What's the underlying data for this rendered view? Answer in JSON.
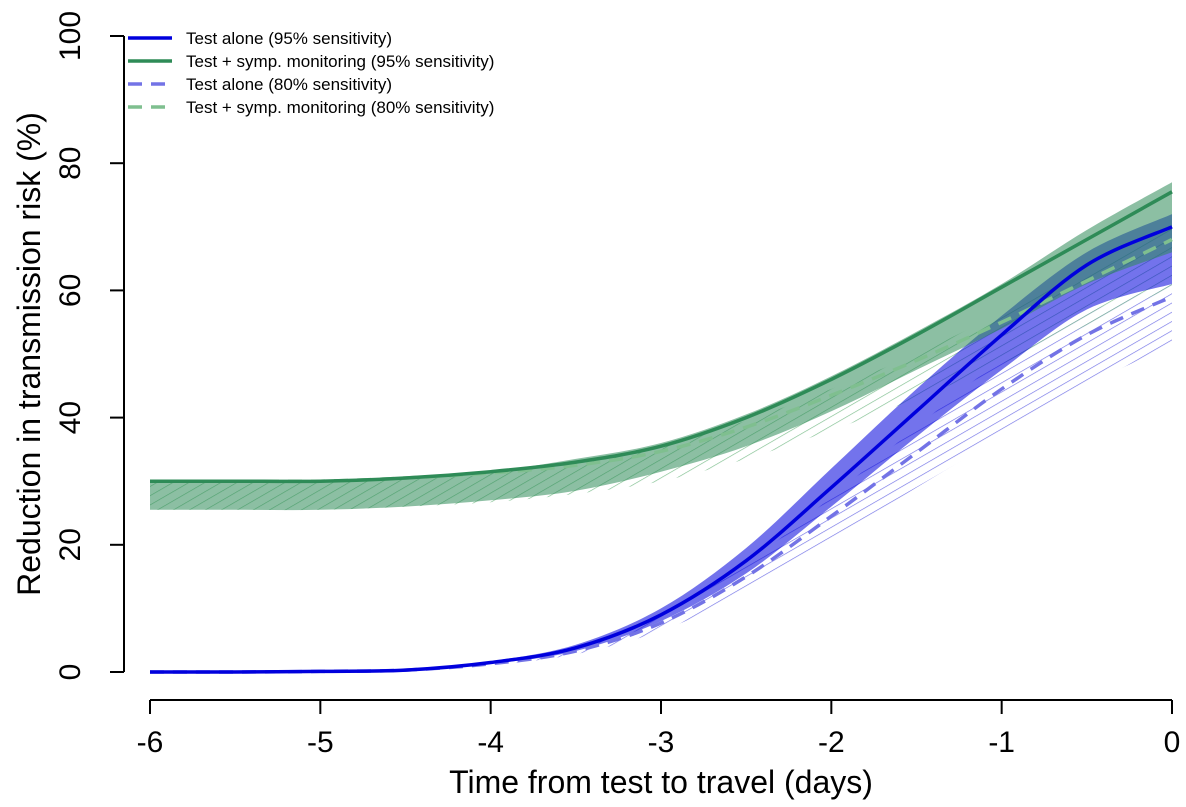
{
  "chart_data": {
    "type": "line",
    "xlabel": "Time from test to travel (days)",
    "ylabel": "Reduction in transmission risk (%)",
    "xlim": [
      -6,
      0
    ],
    "ylim": [
      0,
      100
    ],
    "x_ticks": [
      "-6",
      "-5",
      "-4",
      "-3",
      "-2",
      "-1",
      "0"
    ],
    "y_ticks": [
      "0",
      "20",
      "40",
      "60",
      "80",
      "100"
    ],
    "legend_position": "top-left",
    "x": [
      -6,
      -5.5,
      -5,
      -4.5,
      -4,
      -3.5,
      -3,
      -2.5,
      -2,
      -1.5,
      -1,
      -0.5,
      0
    ],
    "series": [
      {
        "name": "Test alone (95% sensitivity)",
        "color": "#0000dd",
        "style": "solid",
        "values": [
          0,
          0,
          0.1,
          0.3,
          1.5,
          3.8,
          9,
          17.5,
          29,
          41,
          53,
          64,
          70
        ],
        "lower": [
          0,
          0,
          0.1,
          0.3,
          1.3,
          3.3,
          8,
          15.5,
          26,
          37,
          47.5,
          57,
          61
        ],
        "upper": [
          0,
          0,
          0.1,
          0.3,
          1.7,
          4.3,
          10,
          19.5,
          32,
          44.5,
          56,
          66,
          72
        ]
      },
      {
        "name": "Test + symp. monitoring (95% sensitivity)",
        "color": "#2e8b57",
        "style": "solid",
        "values": [
          30,
          30,
          30,
          30.5,
          31.5,
          33,
          35.5,
          40,
          46,
          53,
          60.5,
          68,
          75.5
        ],
        "lower": [
          25.5,
          25.5,
          25.5,
          26,
          27,
          28.5,
          31.5,
          35.5,
          41,
          47.5,
          54,
          61,
          66
        ],
        "upper": [
          30,
          30,
          30,
          30.5,
          31.5,
          33.5,
          36,
          40.5,
          46.5,
          53.5,
          61,
          69.5,
          77
        ]
      },
      {
        "name": "Test alone (80% sensitivity)",
        "color": "#7373e6",
        "style": "dashed",
        "values": [
          0,
          0,
          0.1,
          0.3,
          1.3,
          3.3,
          7.7,
          15,
          24.5,
          34.5,
          44.5,
          53,
          59
        ],
        "lower": [
          0,
          0,
          0.1,
          0.3,
          1.1,
          2.8,
          6.5,
          12.5,
          20.5,
          29,
          37,
          45,
          51.5
        ],
        "upper": [
          0,
          0,
          0.1,
          0.3,
          1.5,
          3.8,
          8.8,
          17,
          27.5,
          38.5,
          49,
          56.5,
          61
        ]
      },
      {
        "name": "Test + symp. monitoring (80% sensitivity)",
        "color": "#7fbf8f",
        "style": "dashed",
        "values": [
          30,
          30,
          30,
          30.5,
          31.3,
          32.5,
          34.7,
          38.5,
          43.5,
          49,
          55,
          61.5,
          68
        ],
        "lower": [
          25.5,
          25.5,
          25.5,
          26,
          26.7,
          28,
          30,
          33.5,
          38,
          43,
          48.5,
          54.5,
          60.5
        ],
        "upper": [
          30,
          30,
          30,
          30.5,
          31.5,
          33,
          35.5,
          39.5,
          44.5,
          50,
          56.5,
          63,
          70
        ]
      }
    ]
  }
}
